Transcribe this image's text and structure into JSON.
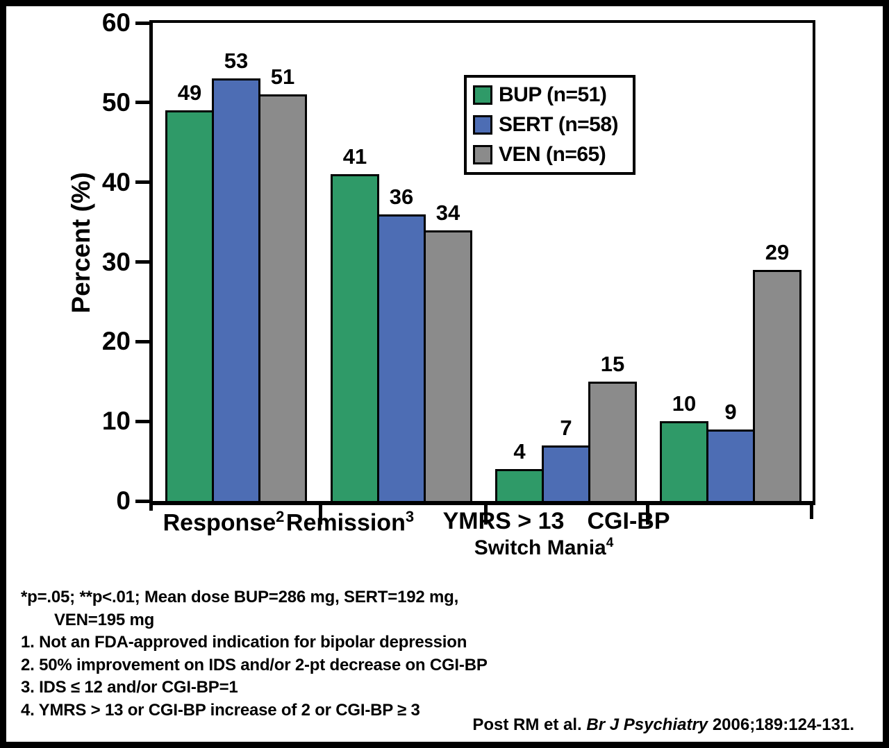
{
  "chart_data": {
    "type": "bar",
    "title": "",
    "ylabel": "Percent (%)",
    "ylim": [
      0,
      60
    ],
    "yticks": [
      0,
      10,
      20,
      30,
      40,
      50,
      60
    ],
    "grid": false,
    "legend_position": "top-right-inside",
    "categories": [
      {
        "label": "Response",
        "sup": "2"
      },
      {
        "label": "Remission",
        "sup": "3"
      },
      {
        "label": "YMRS > 13",
        "sup": ""
      },
      {
        "label": "CGI-BP",
        "sup": ""
      }
    ],
    "x_group_annotation": {
      "label": "Switch Mania",
      "sup": "4"
    },
    "series": [
      {
        "name": "BUP (n=51)",
        "color": "#2f9a68",
        "values": [
          49,
          41,
          4,
          10
        ]
      },
      {
        "name": "SERT (n=58)",
        "color": "#4d6db4",
        "values": [
          53,
          36,
          7,
          9
        ]
      },
      {
        "name": "VEN (n=65)",
        "color": "#8b8b8b",
        "values": [
          51,
          34,
          15,
          29
        ]
      }
    ],
    "bar_labels_shown": true
  },
  "footnotes": {
    "lines": [
      {
        "text": "*p=.05; **p<.01; Mean dose BUP=286 mg, SERT=192 mg,",
        "indent": false
      },
      {
        "text": "VEN=195 mg",
        "indent": true
      },
      {
        "text": "1. Not an FDA-approved indication for bipolar depression",
        "indent": false
      },
      {
        "text": "2. 50% improvement on IDS and/or 2-pt decrease on CGI-BP",
        "indent": false
      },
      {
        "text": "3. IDS ≤ 12 and/or CGI-BP=1",
        "indent": false
      },
      {
        "text": "4. YMRS > 13 or CGI-BP increase of 2 or CGI-BP ≥ 3",
        "indent": false
      }
    ]
  },
  "citation": {
    "prefix": "Post RM et al. ",
    "journal": "Br J Psychiatry",
    "suffix": " 2006;189:124-131."
  }
}
